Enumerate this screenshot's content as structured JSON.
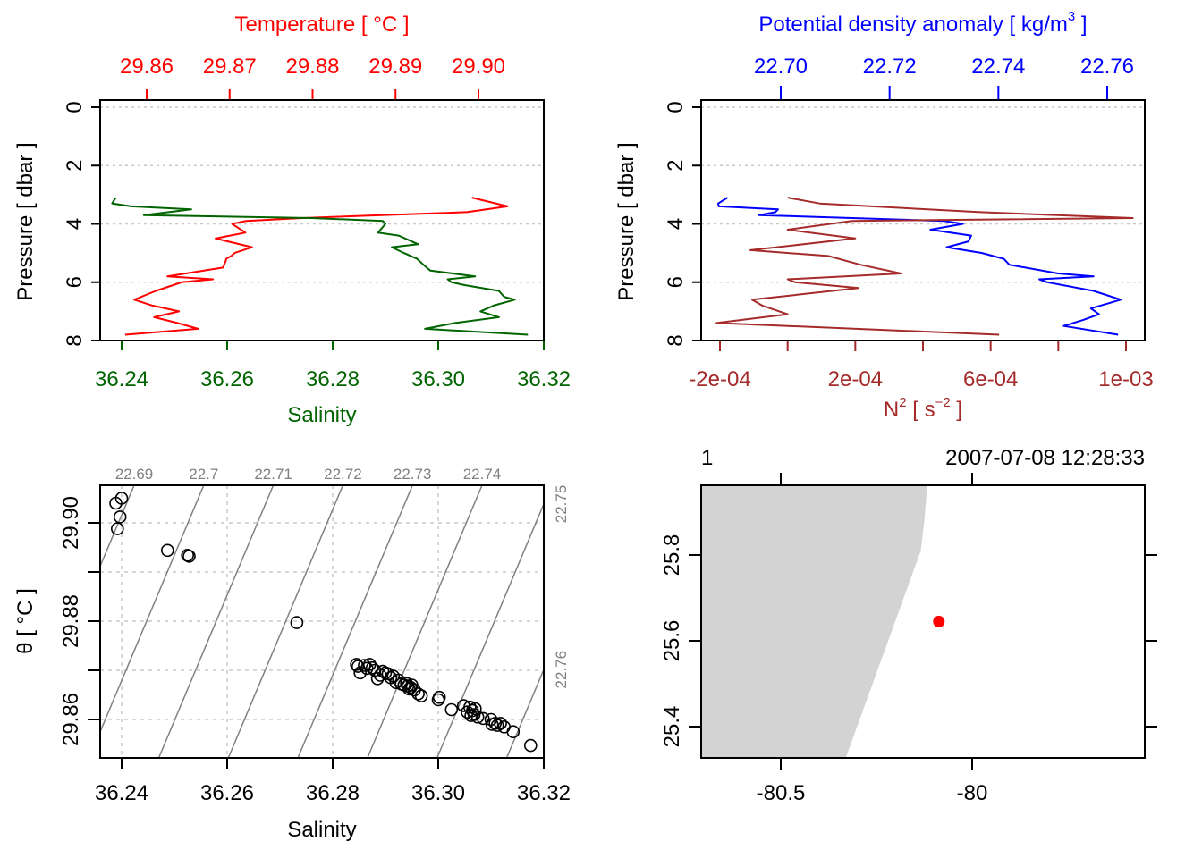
{
  "colors": {
    "temperature": "#ff0000",
    "salinity": "#006400",
    "density": "#0000ff",
    "n2": "#a52a2a",
    "grid": "#c8c8c8",
    "isopycnal": "#808080",
    "land": "#d3d3d3",
    "station": "#ff0000"
  },
  "chart_data": [
    {
      "id": "profile-ts",
      "type": "line",
      "title": "",
      "ylabel": "Pressure [ dbar ]",
      "ylim": [
        8,
        0
      ],
      "yticks": [
        "0",
        "2",
        "4",
        "6",
        "8"
      ],
      "x_bottom": {
        "label": "Salinity",
        "lim": [
          36.236,
          36.32
        ],
        "ticks": [
          "36.24",
          "36.26",
          "36.28",
          "36.30",
          "36.32"
        ]
      },
      "x_top": {
        "label": "Temperature [ °C ]",
        "lim": [
          29.8574,
          29.9109
        ],
        "ticks": [
          "29.86",
          "29.87",
          "29.88",
          "29.89",
          "29.90"
        ]
      },
      "grid": "horizontal-dotted",
      "series": [
        {
          "name": "Temperature",
          "axis": "top",
          "pressure": [
            3.1,
            3.4,
            3.6,
            3.6,
            3.8,
            3.9,
            4.0,
            4.3,
            4.5,
            4.8,
            5.0,
            5.1,
            5.2,
            5.3,
            5.5,
            5.8,
            5.9,
            6.0,
            6.1,
            6.3,
            6.6,
            6.8,
            7.0,
            7.2,
            7.4,
            7.6,
            7.8
          ],
          "values": [
            29.8992,
            29.9035,
            29.8986,
            29.8985,
            29.8787,
            29.872,
            29.8703,
            29.8719,
            29.8683,
            29.8727,
            29.8706,
            29.8702,
            29.8696,
            29.8695,
            29.8692,
            29.8625,
            29.868,
            29.8642,
            29.8632,
            29.8611,
            29.8585,
            29.8607,
            29.8639,
            29.8609,
            29.8637,
            29.8662,
            29.8574
          ]
        },
        {
          "name": "Salinity",
          "axis": "bottom",
          "pressure": [
            3.1,
            3.3,
            3.4,
            3.5,
            3.7,
            3.8,
            3.9,
            4.0,
            4.3,
            4.4,
            4.7,
            4.8,
            5.0,
            5.2,
            5.4,
            5.6,
            5.8,
            5.9,
            6.0,
            6.1,
            6.3,
            6.5,
            6.6,
            6.8,
            7.0,
            7.2,
            7.4,
            7.6,
            7.8
          ],
          "values": [
            36.2389,
            36.2382,
            36.2418,
            36.2532,
            36.2442,
            36.276,
            36.2895,
            36.29,
            36.2886,
            36.2925,
            36.2962,
            36.2912,
            36.2935,
            36.296,
            36.2972,
            36.2985,
            36.307,
            36.3018,
            36.3025,
            36.305,
            36.3115,
            36.3125,
            36.3145,
            36.3105,
            36.308,
            36.3115,
            36.3032,
            36.2975,
            36.317
          ]
        }
      ]
    },
    {
      "id": "profile-density-n2",
      "type": "line",
      "ylabel": "Pressure [ dbar ]",
      "ylim": [
        8,
        0
      ],
      "yticks": [
        "0",
        "2",
        "4",
        "6",
        "8"
      ],
      "x_bottom": {
        "label": "N² [ s⁻² ]",
        "label_base": "N",
        "label_sup": "2",
        "label_mid": " [ s",
        "label_sup2": "−2",
        "label_end": " ]",
        "lim": [
          -0.00025,
          0.00106
        ],
        "ticks": [
          "-2e-04",
          "2e-04",
          "6e-04",
          "1e-03"
        ],
        "minor_ticks": [
          -0.0002,
          0.0,
          0.0002,
          0.0004,
          0.0006,
          0.0008,
          0.001
        ]
      },
      "x_top": {
        "label": "Potential density anomaly [ kg/m³ ]",
        "label_main": "Potential density anomaly [ kg/m",
        "label_sup": "3",
        "label_end": " ]",
        "lim": [
          22.6855,
          22.7668
        ],
        "ticks": [
          "22.70",
          "22.72",
          "22.74",
          "22.76"
        ]
      },
      "grid": "horizontal-dotted",
      "series": [
        {
          "name": "Potential density anomaly",
          "axis": "top",
          "pressure": [
            3.1,
            3.3,
            3.4,
            3.5,
            3.6,
            3.7,
            3.9,
            4.0,
            4.2,
            4.4,
            4.6,
            4.8,
            5.0,
            5.2,
            5.4,
            5.7,
            5.8,
            5.9,
            6.0,
            6.3,
            6.6,
            6.9,
            7.1,
            7.3,
            7.5,
            7.8
          ],
          "values": [
            22.6902,
            22.6885,
            22.6886,
            22.6995,
            22.699,
            22.696,
            22.73,
            22.7335,
            22.7275,
            22.735,
            22.7345,
            22.7305,
            22.737,
            22.741,
            22.742,
            22.751,
            22.7575,
            22.7475,
            22.749,
            22.7575,
            22.7625,
            22.757,
            22.7585,
            22.7555,
            22.752,
            22.762
          ]
        },
        {
          "name": "N2",
          "axis": "bottom",
          "pressure": [
            3.1,
            3.3,
            3.6,
            3.8,
            3.9,
            4.2,
            4.5,
            4.9,
            5.1,
            5.4,
            5.7,
            5.9,
            6.0,
            6.2,
            6.6,
            6.8,
            7.1,
            7.4,
            7.8
          ],
          "values": [
            0.0,
            9.5e-05,
            0.00057,
            0.00102,
            0.00019,
            -0.0,
            0.0002,
            -0.00011,
            0.00012,
            0.000215,
            0.000335,
            0.0,
            2.2e-05,
            0.00021,
            -0.000105,
            -7.5e-05,
            0.0,
            -0.00021,
            0.000625
          ]
        }
      ]
    },
    {
      "id": "ts-diagram",
      "type": "scatter",
      "xlabel": "Salinity",
      "ylabel": "θ [ °C ]",
      "xlim": [
        36.236,
        36.32
      ],
      "ylim": [
        29.8526,
        29.9081
      ],
      "xticks": [
        "36.24",
        "36.26",
        "36.28",
        "36.30",
        "36.32"
      ],
      "yticks": [
        "29.86",
        "29.88",
        "29.90"
      ],
      "grid": "dotted",
      "isopycnals": {
        "values": [
          22.69,
          22.7,
          22.71,
          22.72,
          22.73,
          22.74,
          22.75,
          22.76
        ],
        "labels": [
          "22.69",
          "22.7",
          "22.71",
          "22.72",
          "22.73",
          "22.74",
          "22.75",
          "22.76"
        ],
        "label_positions": [
          "top",
          "top",
          "top",
          "top",
          "top",
          "top",
          "right",
          "right"
        ]
      },
      "points": {
        "salinity": [
          36.24,
          36.2389,
          36.2397,
          36.2392,
          36.2487,
          36.2525,
          36.2528,
          36.2732,
          36.2845,
          36.2848,
          36.2852,
          36.286,
          36.2865,
          36.287,
          36.2875,
          36.288,
          36.2885,
          36.289,
          36.2895,
          36.29,
          36.2905,
          36.291,
          36.2915,
          36.292,
          36.2925,
          36.293,
          36.2935,
          36.294,
          36.2942,
          36.2945,
          36.2948,
          36.295,
          36.2955,
          36.2962,
          36.2968,
          36.3002,
          36.3,
          36.3025,
          36.3048,
          36.3055,
          36.306,
          36.3062,
          36.3065,
          36.3068,
          36.307,
          36.3075,
          36.3085,
          36.31,
          36.3102,
          36.3108,
          36.3112,
          36.3118,
          36.3125,
          36.3142,
          36.3175
        ],
        "theta": [
          29.905,
          29.904,
          29.9012,
          29.8988,
          29.8944,
          29.8934,
          29.8932,
          29.8797,
          29.8712,
          29.8708,
          29.8695,
          29.871,
          29.8704,
          29.8712,
          29.8705,
          29.87,
          29.8683,
          29.869,
          29.8698,
          29.8695,
          29.8693,
          29.8685,
          29.8688,
          29.8675,
          29.868,
          29.8672,
          29.867,
          29.8673,
          29.8668,
          29.8662,
          29.8665,
          29.867,
          29.866,
          29.8652,
          29.8648,
          29.8645,
          29.864,
          29.862,
          29.8628,
          29.8615,
          29.8625,
          29.8608,
          29.8618,
          29.861,
          29.8622,
          29.8605,
          29.8602,
          29.86,
          29.859,
          29.8592,
          29.8588,
          29.8592,
          29.8585,
          29.8575,
          29.8547
        ]
      }
    },
    {
      "id": "station-map",
      "type": "scatter",
      "xlim": [
        -80.706,
        -79.546
      ],
      "ylim": [
        25.328,
        25.963
      ],
      "xticks": [
        "-80.5",
        "-80"
      ],
      "yticks": [
        "25.4",
        "25.6",
        "25.8"
      ],
      "station_label": "1",
      "station_time": "2007-07-08 12:28:33",
      "station": {
        "lon": -80.087,
        "lat": 25.645
      },
      "coastline": {
        "lon": [
          -80.706,
          -80.117,
          -80.125,
          -80.134,
          -80.33,
          -80.706
        ],
        "lat": [
          25.963,
          25.963,
          25.88,
          25.81,
          25.328,
          25.328
        ]
      }
    }
  ]
}
